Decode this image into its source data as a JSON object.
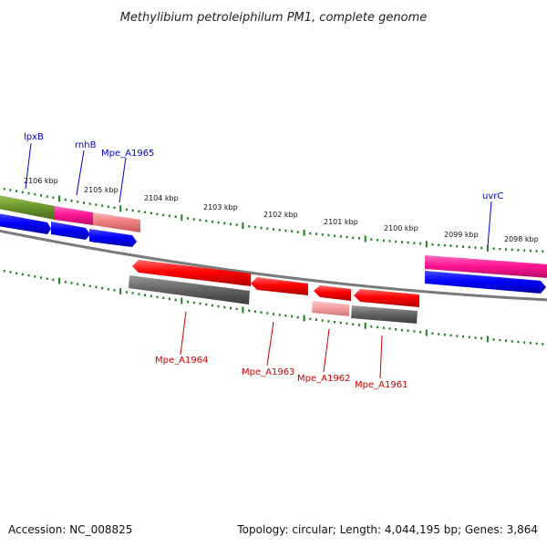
{
  "title": "Methylibium petroleiphilum PM1, complete genome",
  "footer": {
    "accession": "Accession: NC_008825",
    "summary": "Topology: circular; Length: 4,044,195 bp; Genes: 3,864"
  },
  "colors": {
    "background": "#ffffff",
    "tick": "#1a7f1a",
    "backbone": "#7a7a7a",
    "label_top": "#0000cc",
    "label_bottom": "#cc0000",
    "green_feature": "#6f9a2e",
    "magenta_feature": "#ff1493",
    "salmon_feature": "#f08080",
    "blue_feature": "#0000ff",
    "red_feature": "#ff0000",
    "pink_feature": "#f4a0a0",
    "gray_feature": "#666666"
  },
  "kbp_labels": [
    "2106 kbp",
    "2105 kbp",
    "2104 kbp",
    "2103 kbp",
    "2102 kbp",
    "2101 kbp",
    "2100 kbp",
    "2099 kbp",
    "2098 kbp"
  ],
  "top_labels": [
    "lpxB",
    "rnhB",
    "Mpe_A1965",
    "uvrC"
  ],
  "bottom_labels": [
    "Mpe_A1964",
    "Mpe_A1963",
    "Mpe_A1962",
    "Mpe_A1961"
  ]
}
